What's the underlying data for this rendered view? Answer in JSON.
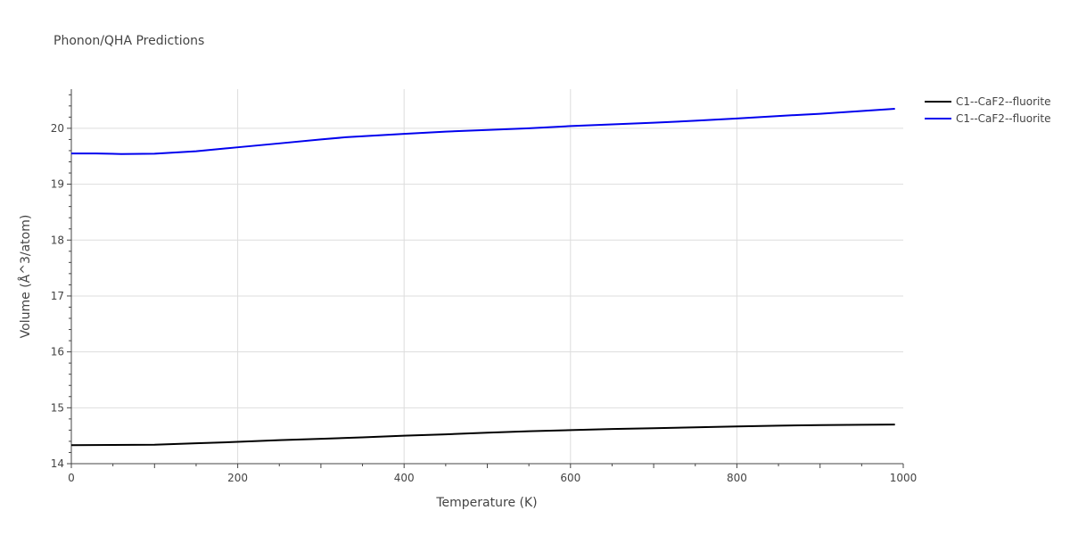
{
  "chart_data": {
    "type": "line",
    "title": "Phonon/QHA Predictions",
    "xlabel": "Temperature (K)",
    "ylabel": "Volume (Å^3/atom)",
    "xlim": [
      0,
      1000
    ],
    "ylim": [
      14,
      20.7
    ],
    "xticks": [
      0,
      200,
      400,
      600,
      800,
      1000
    ],
    "yticks": [
      14,
      15,
      16,
      17,
      18,
      19,
      20
    ],
    "grid": true,
    "legend_position": "top-right",
    "series": [
      {
        "name": "C1--CaF2--fluorite",
        "color": "#000000",
        "x": [
          0,
          50,
          100,
          150,
          200,
          250,
          300,
          350,
          400,
          450,
          500,
          550,
          600,
          650,
          700,
          750,
          800,
          850,
          900,
          950,
          990
        ],
        "y": [
          14.33,
          14.335,
          14.34,
          14.365,
          14.39,
          14.42,
          14.445,
          14.47,
          14.5,
          14.525,
          14.555,
          14.58,
          14.6,
          14.62,
          14.635,
          14.65,
          14.665,
          14.68,
          14.69,
          14.695,
          14.7
        ]
      },
      {
        "name": "C1--CaF2--fluorite",
        "color": "#0000ee",
        "x": [
          0,
          30,
          60,
          100,
          150,
          200,
          250,
          300,
          330,
          400,
          450,
          500,
          550,
          600,
          650,
          700,
          750,
          800,
          850,
          900,
          950,
          990
        ],
        "y": [
          19.55,
          19.55,
          19.54,
          19.545,
          19.59,
          19.66,
          19.73,
          19.8,
          19.84,
          19.9,
          19.94,
          19.97,
          20.0,
          20.04,
          20.07,
          20.1,
          20.135,
          20.175,
          20.22,
          20.26,
          20.31,
          20.35
        ]
      }
    ]
  }
}
